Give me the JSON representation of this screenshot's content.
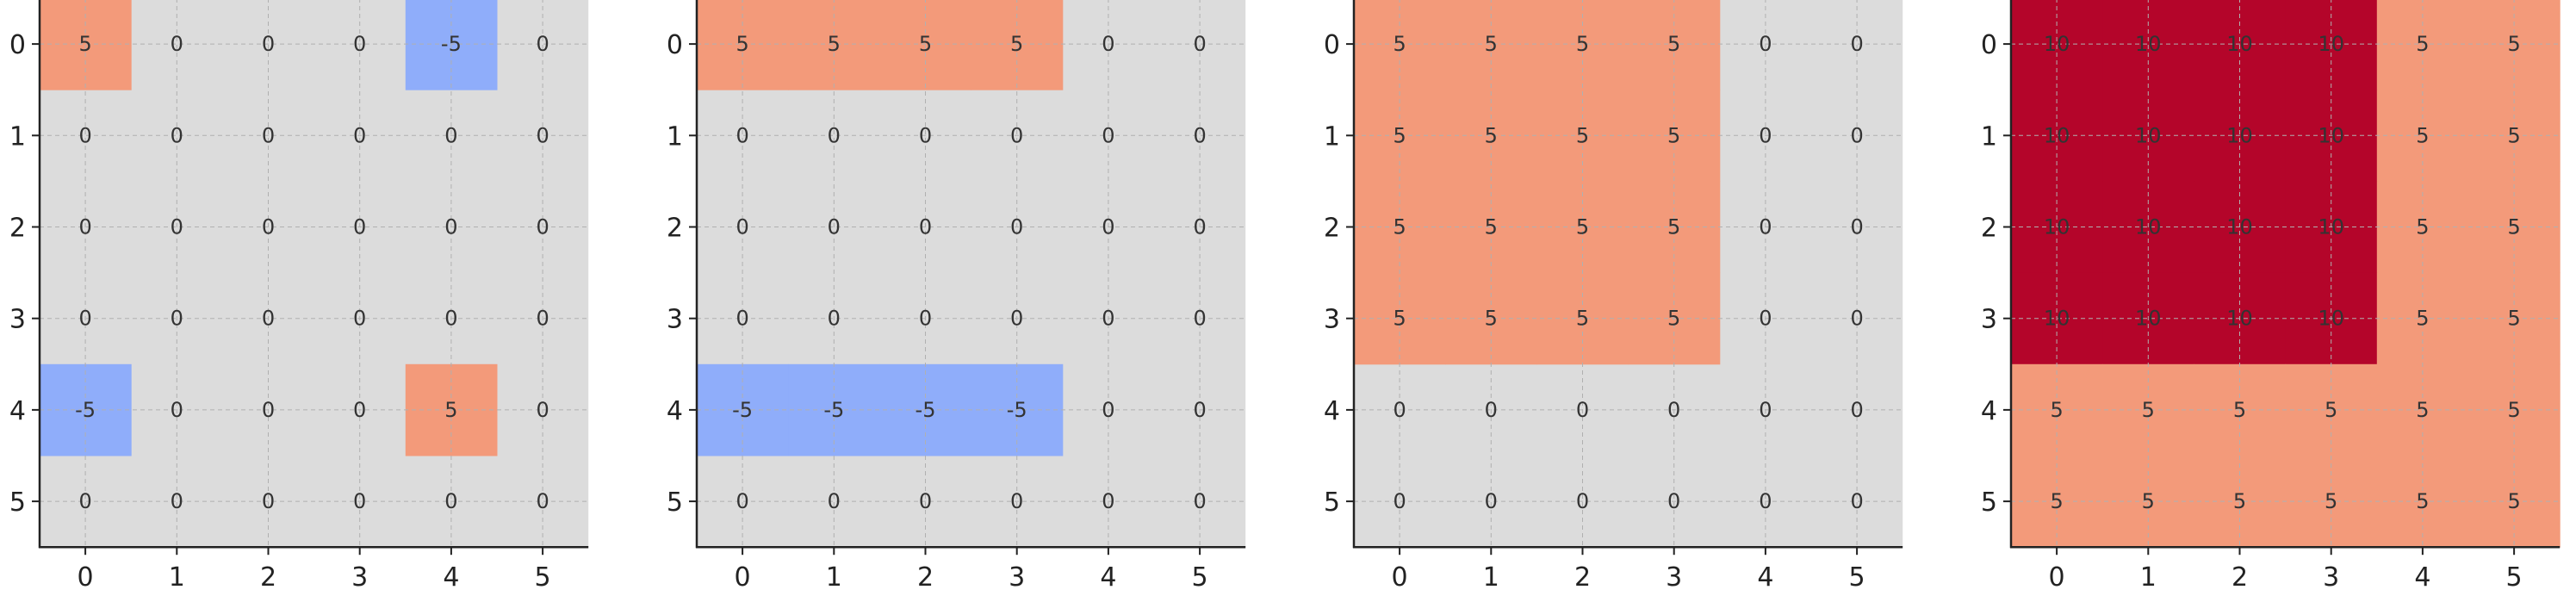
{
  "colors": {
    "background": "#dcdcdc",
    "positive": "#f39a7a",
    "negative": "#8fadfa",
    "high": "#b4052a",
    "text": "#333333"
  },
  "chart_data": [
    {
      "type": "heatmap",
      "x_ticks": [
        "0",
        "1",
        "2",
        "3",
        "4",
        "5"
      ],
      "y_ticks": [
        "0",
        "1",
        "2",
        "3",
        "4",
        "5"
      ],
      "grid": true,
      "values": [
        [
          5,
          0,
          0,
          0,
          -5,
          0
        ],
        [
          0,
          0,
          0,
          0,
          0,
          0
        ],
        [
          0,
          0,
          0,
          0,
          0,
          0
        ],
        [
          0,
          0,
          0,
          0,
          0,
          0
        ],
        [
          -5,
          0,
          0,
          0,
          5,
          0
        ],
        [
          0,
          0,
          0,
          0,
          0,
          0
        ]
      ]
    },
    {
      "type": "heatmap",
      "x_ticks": [
        "0",
        "1",
        "2",
        "3",
        "4",
        "5"
      ],
      "y_ticks": [
        "0",
        "1",
        "2",
        "3",
        "4",
        "5"
      ],
      "grid": true,
      "values": [
        [
          5,
          5,
          5,
          5,
          0,
          0
        ],
        [
          0,
          0,
          0,
          0,
          0,
          0
        ],
        [
          0,
          0,
          0,
          0,
          0,
          0
        ],
        [
          0,
          0,
          0,
          0,
          0,
          0
        ],
        [
          -5,
          -5,
          -5,
          -5,
          0,
          0
        ],
        [
          0,
          0,
          0,
          0,
          0,
          0
        ]
      ]
    },
    {
      "type": "heatmap",
      "x_ticks": [
        "0",
        "1",
        "2",
        "3",
        "4",
        "5"
      ],
      "y_ticks": [
        "0",
        "1",
        "2",
        "3",
        "4",
        "5"
      ],
      "grid": true,
      "values": [
        [
          5,
          5,
          5,
          5,
          0,
          0
        ],
        [
          5,
          5,
          5,
          5,
          0,
          0
        ],
        [
          5,
          5,
          5,
          5,
          0,
          0
        ],
        [
          5,
          5,
          5,
          5,
          0,
          0
        ],
        [
          0,
          0,
          0,
          0,
          0,
          0
        ],
        [
          0,
          0,
          0,
          0,
          0,
          0
        ]
      ]
    },
    {
      "type": "heatmap",
      "x_ticks": [
        "0",
        "1",
        "2",
        "3",
        "4",
        "5"
      ],
      "y_ticks": [
        "0",
        "1",
        "2",
        "3",
        "4",
        "5"
      ],
      "grid": true,
      "values": [
        [
          10,
          10,
          10,
          10,
          5,
          5
        ],
        [
          10,
          10,
          10,
          10,
          5,
          5
        ],
        [
          10,
          10,
          10,
          10,
          5,
          5
        ],
        [
          10,
          10,
          10,
          10,
          5,
          5
        ],
        [
          5,
          5,
          5,
          5,
          5,
          5
        ],
        [
          5,
          5,
          5,
          5,
          5,
          5
        ]
      ]
    }
  ]
}
